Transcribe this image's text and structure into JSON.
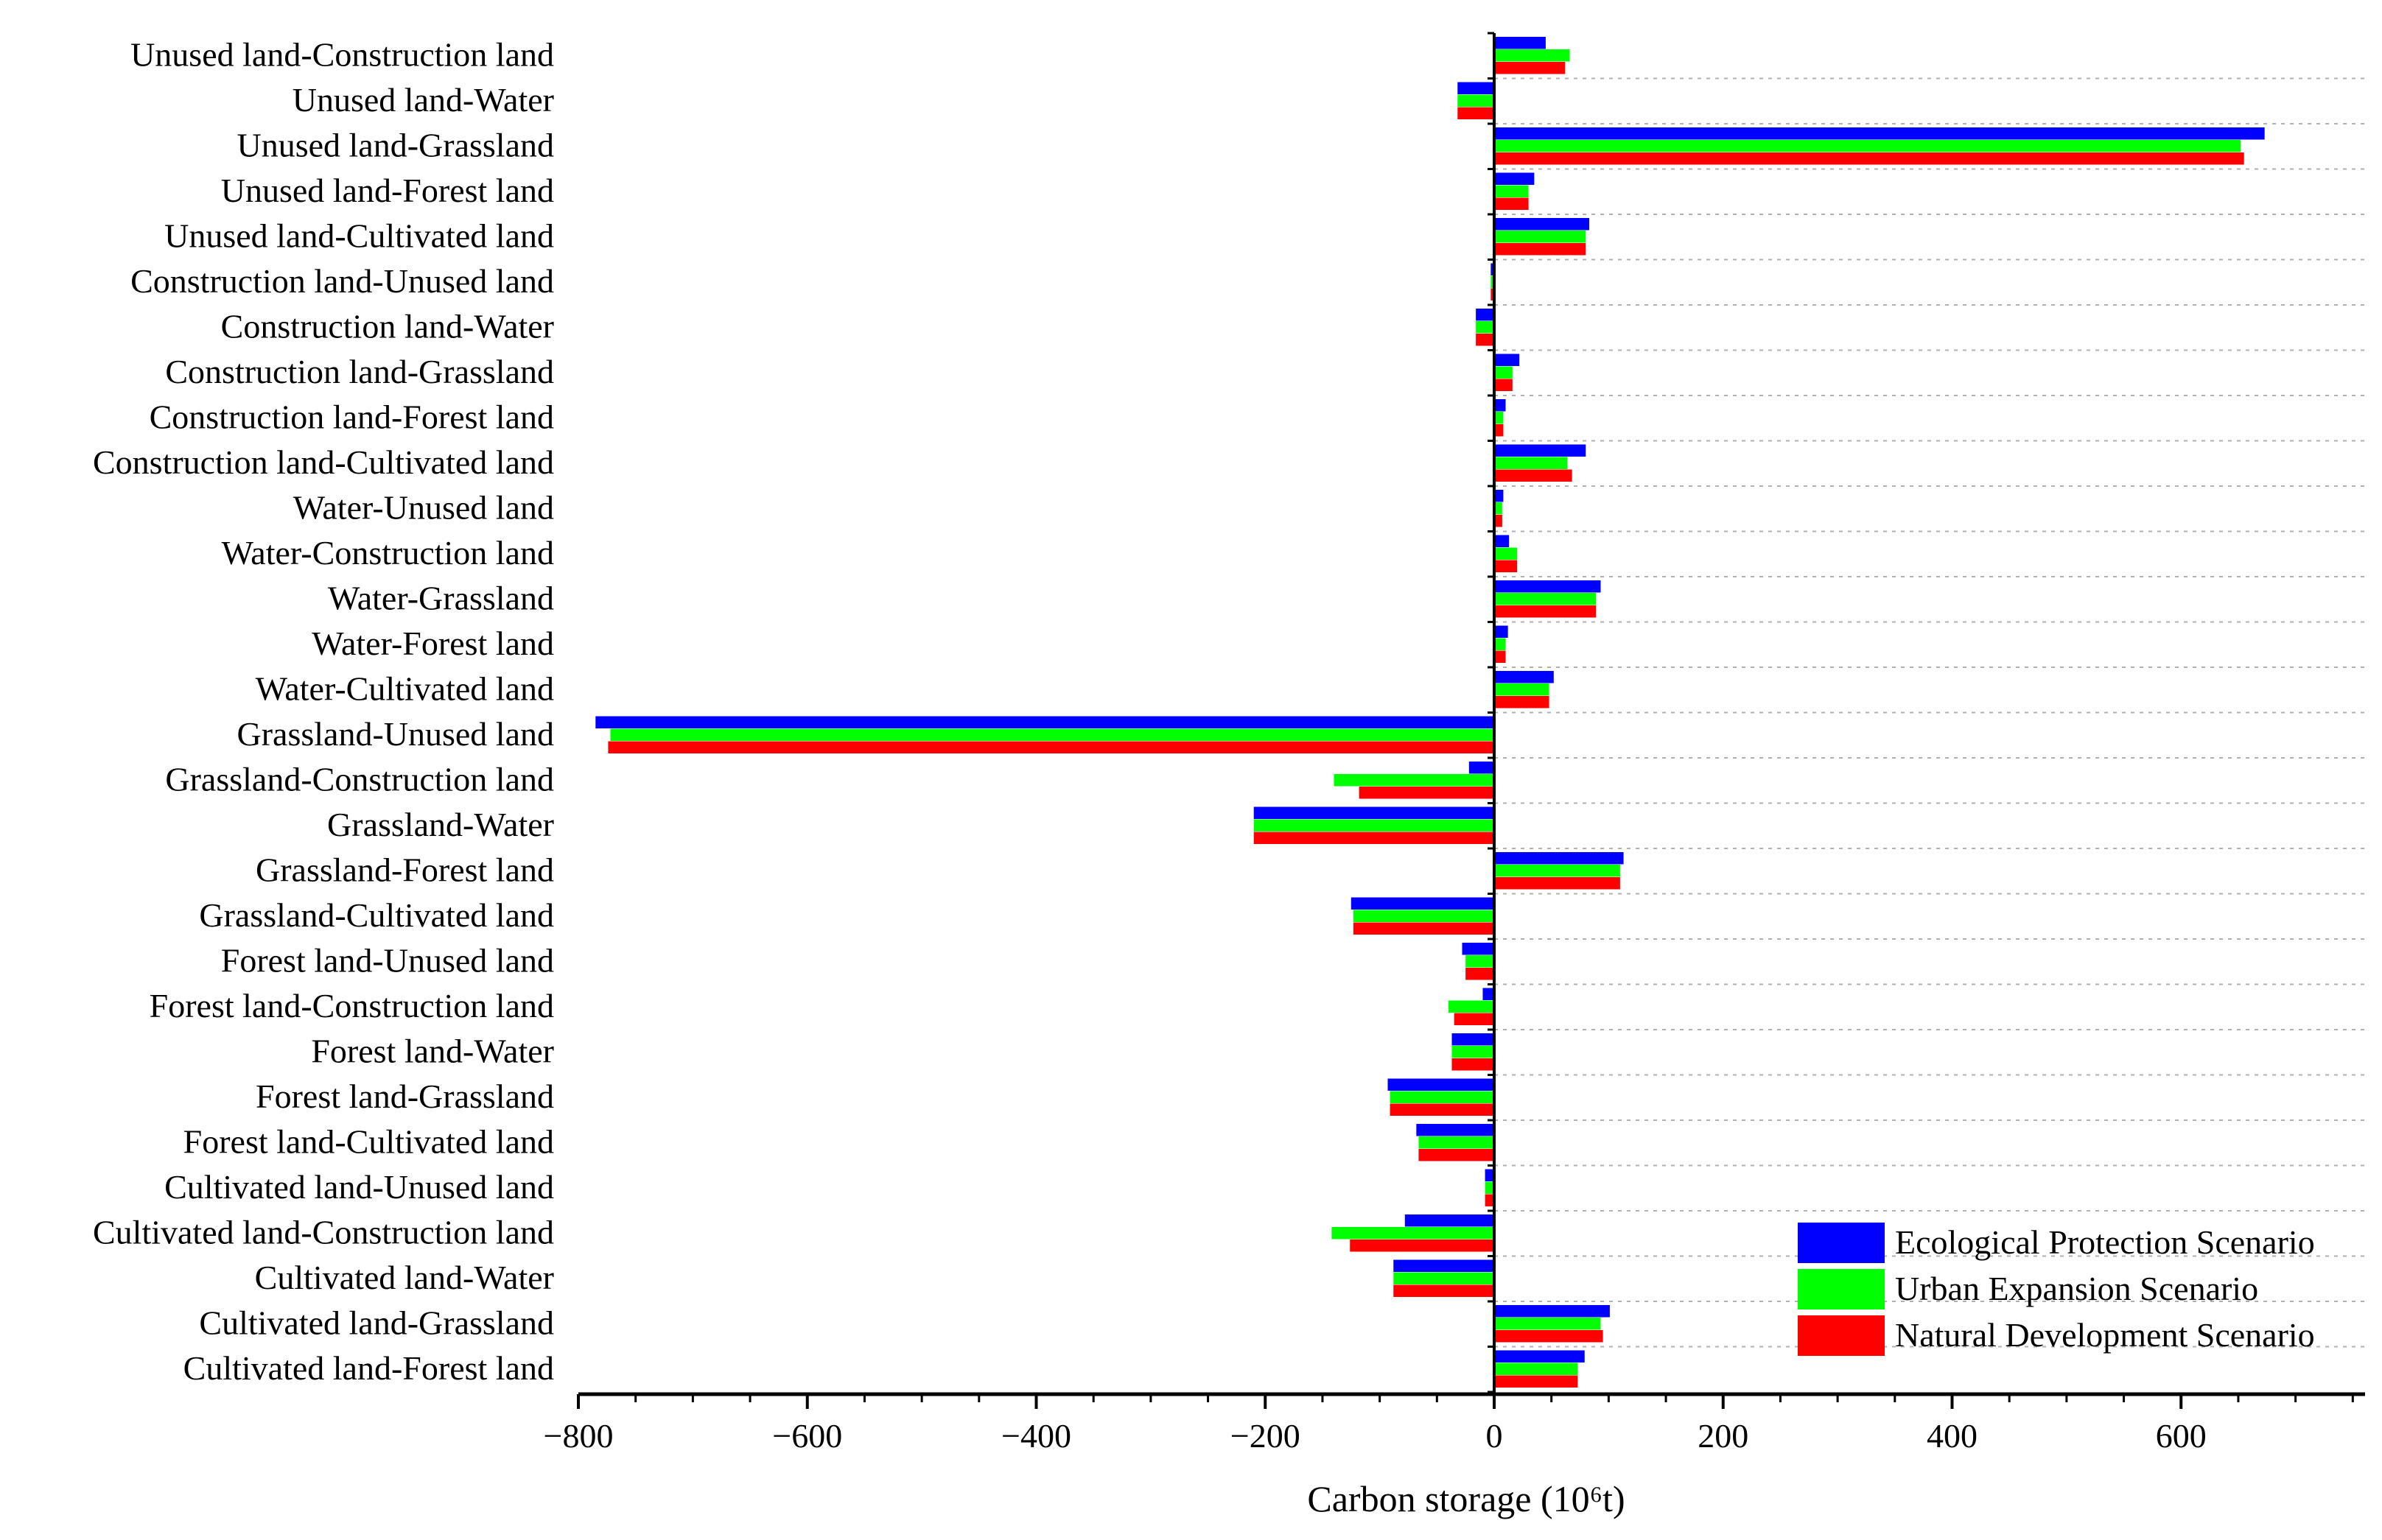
{
  "chart_data": {
    "type": "bar",
    "orientation": "horizontal",
    "xlabel": "Carbon storage",
    "xlabel_unit": "(10⁶t)",
    "xlim": [
      -800,
      750
    ],
    "xticks": [
      -800,
      -600,
      -400,
      -200,
      0,
      200,
      400,
      600
    ],
    "xtick_labels": [
      "−800",
      "−600",
      "−400",
      "−200",
      "0",
      "200",
      "400",
      "600"
    ],
    "grid": "horizontal dotted separators between categories",
    "legend_position": "bottom-right",
    "categories": [
      "Unused land-Construction land",
      "Unused land-Water",
      "Unused land-Grassland",
      "Unused land-Forest land",
      "Unused land-Cultivated land",
      "Construction land-Unused land",
      "Construction land-Water",
      "Construction land-Grassland",
      "Construction land-Forest land",
      "Construction land-Cultivated land",
      "Water-Unused land",
      "Water-Construction land",
      "Water-Grassland",
      "Water-Forest land",
      "Water-Cultivated land",
      "Grassland-Unused land",
      "Grassland-Construction land",
      "Grassland-Water",
      "Grassland-Forest land",
      "Grassland-Cultivated land",
      "Forest land-Unused land",
      "Forest land-Construction land",
      "Forest land-Water",
      "Forest land-Grassland",
      "Forest land-Cultivated land",
      "Cultivated land-Unused land",
      "Cultivated land-Construction land",
      "Cultivated land-Water",
      "Cultivated land-Grassland",
      "Cultivated land-Forest land"
    ],
    "series": [
      {
        "name": "Ecological Protection Scenario",
        "color": "#0000ff",
        "values": [
          45,
          -32,
          673,
          35,
          83,
          -3,
          -16,
          22,
          10,
          80,
          8,
          13,
          93,
          12,
          52,
          -785,
          -22,
          -210,
          113,
          -125,
          -28,
          -10,
          -37,
          -93,
          -68,
          -8,
          -78,
          -88,
          101,
          79
        ]
      },
      {
        "name": "Urban Expansion Scenario",
        "color": "#00ff00",
        "values": [
          66,
          -32,
          652,
          30,
          80,
          -3,
          -16,
          16,
          8,
          64,
          7,
          20,
          89,
          10,
          48,
          -772,
          -140,
          -210,
          110,
          -123,
          -25,
          -40,
          -37,
          -91,
          -66,
          -8,
          -142,
          -88,
          93,
          73
        ]
      },
      {
        "name": "Natural Development Scenario",
        "color": "#ff0000",
        "values": [
          62,
          -32,
          655,
          30,
          80,
          -3,
          -16,
          16,
          8,
          68,
          7,
          20,
          89,
          10,
          48,
          -774,
          -118,
          -210,
          110,
          -123,
          -25,
          -35,
          -37,
          -91,
          -66,
          -8,
          -126,
          -88,
          95,
          73
        ]
      }
    ]
  }
}
